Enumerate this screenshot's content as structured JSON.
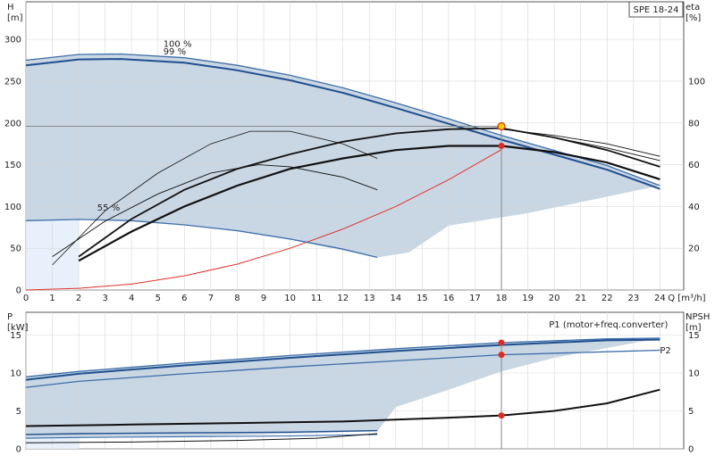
{
  "chart_data": [
    {
      "type": "line",
      "title": "SPE 18-24",
      "xlabel": "Q [m³/h]",
      "ylabel_left": [
        "H",
        "[m]"
      ],
      "ylabel_right": [
        "eta",
        "[%]"
      ],
      "xlim": [
        0,
        24.9
      ],
      "ylim_left": [
        0,
        345
      ],
      "ylim_right": [
        0,
        138
      ],
      "x_ticks": [
        0,
        1,
        2,
        3,
        4,
        5,
        6,
        7,
        8,
        9,
        10,
        11,
        12,
        13,
        14,
        15,
        16,
        17,
        18,
        19,
        20,
        21,
        22,
        23,
        24
      ],
      "y_ticks_left": [
        0,
        50,
        100,
        150,
        200,
        250,
        300
      ],
      "y_ticks_right": [
        20,
        40,
        60,
        80,
        100
      ],
      "grid": true,
      "duty_point": {
        "q": 18,
        "h": 196,
        "eta": 69
      },
      "speed_labels": [
        {
          "text": "100 %",
          "q": 5.2,
          "h": 291
        },
        {
          "text": "99 %",
          "q": 5.2,
          "h": 282
        },
        {
          "text": "55 %",
          "q": 2.7,
          "h": 95
        }
      ],
      "envelope": [
        [
          0,
          275
        ],
        [
          2,
          282
        ],
        [
          3.6,
          282.5
        ],
        [
          6,
          278
        ],
        [
          8,
          269
        ],
        [
          10,
          257
        ],
        [
          12,
          242
        ],
        [
          14,
          224
        ],
        [
          16,
          205
        ],
        [
          18,
          185
        ],
        [
          20,
          167
        ],
        [
          22,
          149
        ],
        [
          24,
          125
        ],
        [
          19,
          92
        ],
        [
          16,
          77
        ],
        [
          14.5,
          45
        ],
        [
          13.3,
          39
        ],
        [
          10,
          60
        ],
        [
          8,
          70
        ],
        [
          6,
          78
        ],
        [
          4,
          83
        ],
        [
          2,
          84
        ],
        [
          0,
          83
        ]
      ],
      "h_series": [
        {
          "points": [
            [
              0,
              275
            ],
            [
              2,
              282
            ],
            [
              3.6,
              282.5
            ],
            [
              6,
              278
            ],
            [
              8,
              269
            ],
            [
              10,
              257
            ],
            [
              12,
              242
            ],
            [
              14,
              224
            ],
            [
              16,
              205
            ],
            [
              18,
              185
            ],
            [
              20,
              167
            ],
            [
              22,
              149
            ],
            [
              24,
              125
            ]
          ]
        },
        {
          "points": [
            [
              0,
              269
            ],
            [
              2,
              276
            ],
            [
              3.6,
              276.5
            ],
            [
              6,
              272
            ],
            [
              8,
              263
            ],
            [
              10,
              251
            ],
            [
              12,
              236
            ],
            [
              14,
              218
            ],
            [
              16,
              199
            ],
            [
              18,
              180
            ],
            [
              20,
              162
            ],
            [
              22,
              144
            ],
            [
              24,
              121
            ]
          ]
        },
        {
          "points": [
            [
              0,
              83
            ],
            [
              2,
              84.5
            ],
            [
              4,
              83
            ],
            [
              6,
              78
            ],
            [
              8,
              71
            ],
            [
              10,
              61
            ],
            [
              12,
              49
            ],
            [
              13.3,
              39
            ]
          ]
        }
      ],
      "system_curve": [
        [
          0,
          0
        ],
        [
          2,
          2
        ],
        [
          4,
          7
        ],
        [
          6,
          17
        ],
        [
          8,
          31
        ],
        [
          10,
          50
        ],
        [
          12,
          73
        ],
        [
          14,
          100
        ],
        [
          16,
          132
        ],
        [
          18,
          168
        ]
      ],
      "eta_series": [
        {
          "points": [
            [
              1,
              12
            ],
            [
              3,
              38
            ],
            [
              5,
              56
            ],
            [
              7,
              70
            ],
            [
              8.5,
              76
            ],
            [
              10,
              76
            ],
            [
              12,
              70
            ],
            [
              13.3,
              63
            ]
          ]
        },
        {
          "points": [
            [
              1,
              16
            ],
            [
              3,
              33
            ],
            [
              5,
              46
            ],
            [
              7,
              56
            ],
            [
              8.8,
              60
            ],
            [
              10,
              59
            ],
            [
              12,
              54
            ],
            [
              13.3,
              48
            ]
          ]
        },
        {
          "points": [
            [
              2,
              16
            ],
            [
              4,
              34
            ],
            [
              6,
              48
            ],
            [
              8,
              58
            ],
            [
              10,
              65
            ],
            [
              12,
              71
            ],
            [
              14,
              75
            ],
            [
              16,
              77
            ],
            [
              18,
              77.5
            ],
            [
              20,
              73
            ],
            [
              22,
              67
            ],
            [
              24,
              59
            ]
          ]
        },
        {
          "points": [
            [
              2,
              14
            ],
            [
              4,
              28
            ],
            [
              6,
              40
            ],
            [
              8,
              50
            ],
            [
              10,
              58
            ],
            [
              12,
              63
            ],
            [
              14,
              67
            ],
            [
              16,
              69
            ],
            [
              18,
              69
            ],
            [
              20,
              66
            ],
            [
              22,
              61
            ],
            [
              24,
              53
            ]
          ]
        },
        {
          "points": [
            [
              18,
              77
            ],
            [
              20,
              74
            ],
            [
              22,
              70
            ],
            [
              24,
              64
            ]
          ]
        },
        {
          "points": [
            [
              18,
              77.5
            ],
            [
              20,
              73
            ],
            [
              22,
              68
            ],
            [
              24,
              62
            ]
          ]
        }
      ]
    },
    {
      "type": "line",
      "xlim": [
        0,
        24.9
      ],
      "ylim_left": [
        0,
        18
      ],
      "ylim_right": [
        0,
        18
      ],
      "ylabel_left": [
        "P",
        "[kW]"
      ],
      "ylabel_right": [
        "NPSH",
        "[m]"
      ],
      "y_ticks_left": [
        0,
        5,
        10,
        15
      ],
      "y_ticks_right": [
        0,
        5,
        10,
        15
      ],
      "grid": true,
      "series_labels": [
        {
          "text": "P1 (motor+freq.converter)",
          "q": 19.8,
          "p": 16
        },
        {
          "text": "P2",
          "q": 24,
          "p": 12.6
        }
      ],
      "envelope": [
        [
          0,
          9.5
        ],
        [
          2,
          10.2
        ],
        [
          6,
          11.3
        ],
        [
          10,
          12.3
        ],
        [
          14,
          13.2
        ],
        [
          18,
          14
        ],
        [
          22,
          14.6
        ],
        [
          24,
          14.6
        ],
        [
          20,
          12
        ],
        [
          18,
          10.2
        ],
        [
          16,
          7.8
        ],
        [
          14,
          5.5
        ],
        [
          13.3,
          2.3
        ],
        [
          10,
          2
        ],
        [
          6,
          1.6
        ],
        [
          2,
          1.5
        ],
        [
          0,
          1.3
        ]
      ],
      "p_series": [
        {
          "points": [
            [
              0,
              9.5
            ],
            [
              2,
              10.2
            ],
            [
              6,
              11.3
            ],
            [
              10,
              12.3
            ],
            [
              14,
              13.2
            ],
            [
              18,
              14
            ],
            [
              22,
              14.5
            ],
            [
              24,
              14.6
            ]
          ]
        },
        {
          "points": [
            [
              0,
              9.1
            ],
            [
              2,
              9.9
            ],
            [
              6,
              11
            ],
            [
              10,
              12
            ],
            [
              14,
              12.9
            ],
            [
              18,
              13.7
            ],
            [
              22,
              14.3
            ],
            [
              24,
              14.4
            ]
          ]
        },
        {
          "points": [
            [
              0,
              8.1
            ],
            [
              2,
              8.9
            ],
            [
              6,
              9.9
            ],
            [
              10,
              10.8
            ],
            [
              14,
              11.6
            ],
            [
              18,
              12.4
            ],
            [
              22,
              12.8
            ],
            [
              24,
              13
            ]
          ]
        },
        {
          "points": [
            [
              0,
              1.9
            ],
            [
              2,
              2
            ],
            [
              6,
              2.1
            ],
            [
              10,
              2.2
            ],
            [
              13.3,
              2.4
            ]
          ]
        },
        {
          "points": [
            [
              0,
              1.4
            ],
            [
              2,
              1.5
            ],
            [
              6,
              1.6
            ],
            [
              10,
              1.7
            ],
            [
              13.3,
              1.9
            ]
          ]
        },
        {
          "points": [
            [
              0,
              0.8
            ],
            [
              4,
              0.9
            ],
            [
              8,
              1.1
            ],
            [
              11,
              1.4
            ],
            [
              13.3,
              2.0
            ]
          ]
        }
      ],
      "npsh_series": [
        {
          "points": [
            [
              0,
              3
            ],
            [
              4,
              3.2
            ],
            [
              8,
              3.4
            ],
            [
              12,
              3.6
            ],
            [
              16,
              4.1
            ],
            [
              18,
              4.4
            ],
            [
              20,
              5
            ],
            [
              22,
              6
            ],
            [
              24,
              7.8
            ]
          ]
        }
      ],
      "duty_points": [
        {
          "q": 18,
          "p": 14
        },
        {
          "q": 18,
          "p": 12.4
        },
        {
          "q": 18,
          "npsh": 4.4
        }
      ]
    }
  ],
  "colors": {
    "envelope": "#c9d6e3",
    "low_region": "#e8f1fb",
    "curve_blue": "#1f4f8f",
    "curve_blue_light": "#3d6eaa",
    "eta": "#111111",
    "system": "#e0322b",
    "grid": "#d7d7d7",
    "duty_marker": "#e8281e",
    "duty_marker_yellow": "#f5d000",
    "duty_line": "#8a8a8a"
  }
}
